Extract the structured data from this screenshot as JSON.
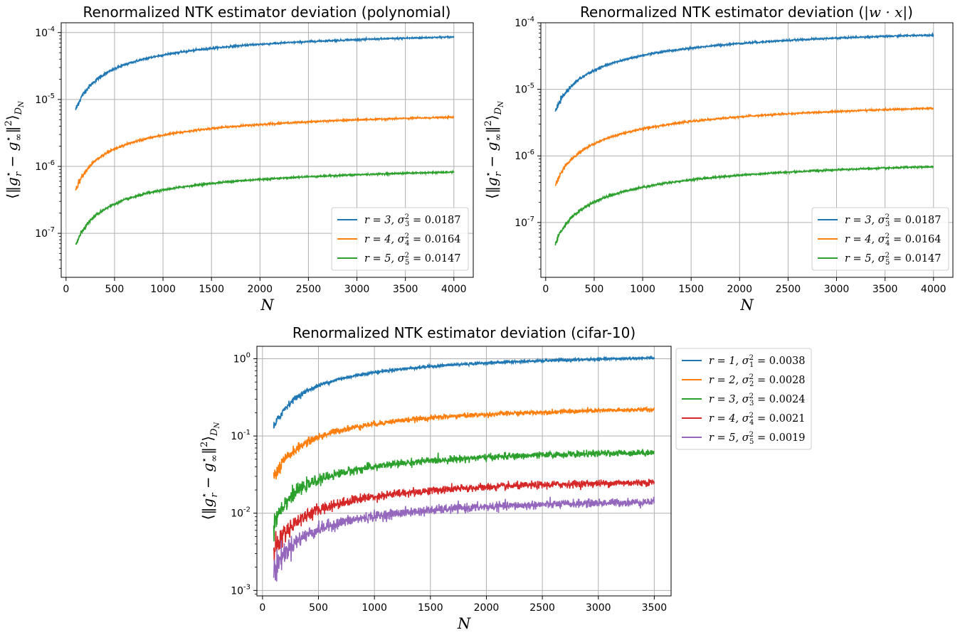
{
  "chart_data": [
    {
      "type": "line",
      "title": "Renormalized NTK estimator deviation (polynomial)",
      "xlabel": "N",
      "ylabel": "⟨‖g*_r − g*_∞‖²⟩_{D_N}",
      "xlim": [
        -50,
        4200
      ],
      "ylim": [
        2.2e-08,
        0.00014
      ],
      "yscale": "log",
      "xticks": [
        0,
        500,
        1000,
        1500,
        2000,
        2500,
        3000,
        3500,
        4000
      ],
      "yticks": [
        1e-07,
        1e-06,
        1e-05,
        0.0001
      ],
      "ytick_labels": [
        "10",
        "10",
        "10",
        "10"
      ],
      "ytick_exponents": [
        "-7",
        "-6",
        "-5",
        "-4"
      ],
      "grid": true,
      "legend_position": "lower-right",
      "x_range": [
        100,
        4000
      ],
      "series": [
        {
          "name_parts": [
            "r = 3, ",
            "σ",
            "3",
            "2",
            " = 0.0187"
          ],
          "color": "#1f77b4",
          "asymptote": 0.00012,
          "n0": 1600,
          "noise": 0.02
        },
        {
          "name_parts": [
            "r = 4, ",
            "σ",
            "4",
            "2",
            " = 0.0164"
          ],
          "color": "#ff7f0e",
          "asymptote": 7.6e-06,
          "n0": 1600,
          "noise": 0.02
        },
        {
          "name_parts": [
            "r = 5, ",
            "σ",
            "5",
            "2",
            " = 0.0147"
          ],
          "color": "#2ca02c",
          "asymptote": 1.15e-06,
          "n0": 1600,
          "noise": 0.02
        }
      ]
    },
    {
      "type": "line",
      "title_parts": [
        "Renormalized NTK estimator deviation (",
        "|w · x|",
        ")"
      ],
      "xlabel": "N",
      "ylabel": "⟨‖g*_r − g*_∞‖²⟩_{D_N}",
      "xlim": [
        -50,
        4200
      ],
      "ylim": [
        1.5e-08,
        0.0001
      ],
      "yscale": "log",
      "xticks": [
        0,
        500,
        1000,
        1500,
        2000,
        2500,
        3000,
        3500,
        4000
      ],
      "yticks": [
        1e-07,
        1e-06,
        1e-05,
        0.0001
      ],
      "ytick_labels": [
        "10",
        "10",
        "10",
        "10"
      ],
      "ytick_exponents": [
        "-7",
        "-6",
        "-5",
        "-4"
      ],
      "grid": true,
      "legend_position": "lower-right",
      "x_range": [
        100,
        4000
      ],
      "series": [
        {
          "name_parts": [
            "r = 3, ",
            "σ",
            "3",
            "2",
            " = 0.0187"
          ],
          "color": "#1f77b4",
          "asymptote": 0.0001,
          "n0": 2100,
          "noise": 0.02
        },
        {
          "name_parts": [
            "r = 4, ",
            "σ",
            "4",
            "2",
            " = 0.0164"
          ],
          "color": "#ff7f0e",
          "asymptote": 7.9e-06,
          "n0": 2100,
          "noise": 0.02
        },
        {
          "name_parts": [
            "r = 5, ",
            "σ",
            "5",
            "2",
            " = 0.0147"
          ],
          "color": "#2ca02c",
          "asymptote": 1.05e-06,
          "n0": 2100,
          "noise": 0.02
        }
      ]
    },
    {
      "type": "line",
      "title": "Renormalized NTK estimator deviation (cifar-10)",
      "xlabel": "N",
      "ylabel": "⟨‖g*_r − g*_∞‖²⟩_{D_N}",
      "xlim": [
        -50,
        3650
      ],
      "ylim": [
        0.00085,
        1.45
      ],
      "yscale": "log",
      "xticks": [
        0,
        500,
        1000,
        1500,
        2000,
        2500,
        3000,
        3500
      ],
      "yticks": [
        0.001,
        0.01,
        0.1,
        1
      ],
      "ytick_labels": [
        "10",
        "10",
        "10",
        "10"
      ],
      "ytick_exponents": [
        "-3",
        "-2",
        "-1",
        "0"
      ],
      "grid": true,
      "legend_position": "outside-right",
      "x_range": [
        100,
        3500
      ],
      "series": [
        {
          "name_parts": [
            "r = 1, ",
            "σ",
            "1",
            "2",
            " = 0.0038"
          ],
          "color": "#1f77b4",
          "asymptote": 1.3,
          "n0": 950,
          "noise": 0.03
        },
        {
          "name_parts": [
            "r = 2, ",
            "σ",
            "2",
            "2",
            " = 0.0028"
          ],
          "color": "#ff7f0e",
          "asymptote": 0.28,
          "n0": 950,
          "noise": 0.05
        },
        {
          "name_parts": [
            "r = 3, ",
            "σ",
            "3",
            "2",
            " = 0.0024"
          ],
          "color": "#2ca02c",
          "asymptote": 0.078,
          "n0": 950,
          "noise": 0.07
        },
        {
          "name_parts": [
            "r = 4, ",
            "σ",
            "4",
            "2",
            " = 0.0021"
          ],
          "color": "#d62728",
          "asymptote": 0.032,
          "n0": 950,
          "noise": 0.08
        },
        {
          "name_parts": [
            "r = 5, ",
            "σ",
            "5",
            "2",
            " = 0.0019"
          ],
          "color": "#9467bd",
          "asymptote": 0.0178,
          "n0": 950,
          "noise": 0.09
        }
      ]
    }
  ]
}
